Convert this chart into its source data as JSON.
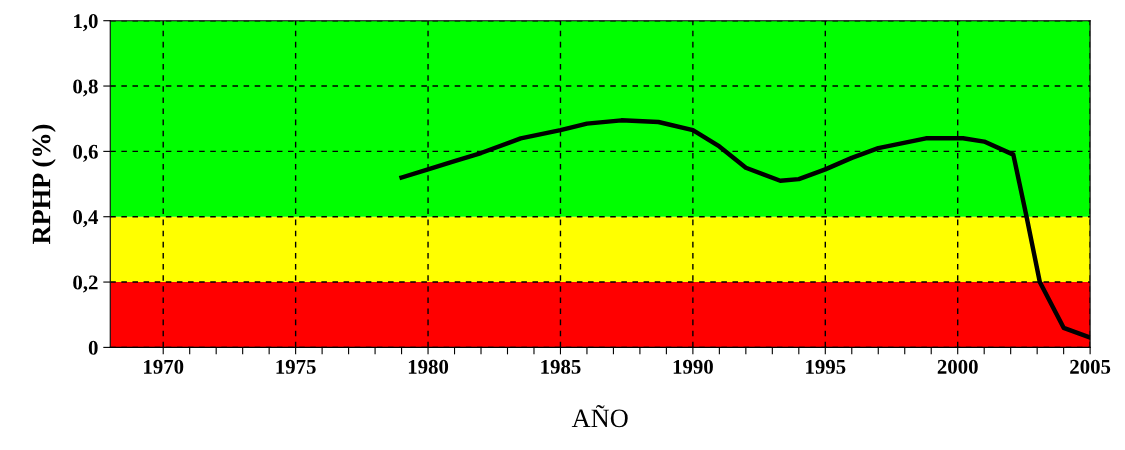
{
  "chart_data": {
    "type": "line",
    "xlabel": "AÑO",
    "ylabel": "RPHP (%)",
    "x": [
      1979,
      1980,
      1981,
      1982,
      1983.5,
      1985,
      1986,
      1987.3,
      1988.7,
      1990,
      1991,
      1992,
      1993.3,
      1994,
      1995,
      1996,
      1997,
      1998.8,
      2000.2,
      2001,
      2002.1,
      2002.6,
      2003.1,
      2004,
      2005
    ],
    "series": [
      {
        "color": "#000000",
        "values": [
          0.52,
          0.545,
          0.57,
          0.595,
          0.64,
          0.665,
          0.685,
          0.695,
          0.69,
          0.665,
          0.615,
          0.55,
          0.51,
          0.515,
          0.545,
          0.58,
          0.61,
          0.64,
          0.64,
          0.63,
          0.59,
          0.4,
          0.2,
          0.06,
          0.03
        ]
      }
    ],
    "xlim": [
      1968,
      2005
    ],
    "ylim": [
      0,
      1.0
    ],
    "xticks": [
      1970,
      {
        "value": 1971,
        "label": null
      },
      {
        "value": 1972,
        "label": null
      },
      {
        "value": 1973,
        "label": null
      },
      {
        "value": 1974,
        "label": null
      },
      1975,
      {
        "value": 1976,
        "label": null
      },
      {
        "value": 1977,
        "label": null
      },
      {
        "value": 1978,
        "label": null
      },
      {
        "value": 1979,
        "label": null
      },
      1980,
      {
        "value": 1981,
        "label": null
      },
      {
        "value": 1982,
        "label": null
      },
      {
        "value": 1983,
        "label": null
      },
      {
        "value": 1984,
        "label": null
      },
      1985,
      {
        "value": 1986,
        "label": null
      },
      {
        "value": 1987,
        "label": null
      },
      {
        "value": 1988,
        "label": null
      },
      {
        "value": 1989,
        "label": null
      },
      1990,
      {
        "value": 1991,
        "label": null
      },
      {
        "value": 1992,
        "label": null
      },
      {
        "value": 1993,
        "label": null
      },
      {
        "value": 1994,
        "label": null
      },
      1995,
      {
        "value": 1996,
        "label": null
      },
      {
        "value": 1997,
        "label": null
      },
      {
        "value": 1998,
        "label": null
      },
      {
        "value": 1999,
        "label": null
      },
      2000,
      {
        "value": 2001,
        "label": null
      },
      {
        "value": 2002,
        "label": null
      },
      {
        "value": 2003,
        "label": null
      },
      {
        "value": 2004,
        "label": null
      },
      2005
    ],
    "yticks": [
      0,
      {
        "value": 0.2,
        "label": "0,2"
      },
      {
        "value": 0.4,
        "label": "0,4"
      },
      {
        "value": 0.6,
        "label": "0,6"
      },
      {
        "value": 0.8,
        "label": "0,8"
      },
      {
        "value": 1.0,
        "label": "1,0"
      }
    ],
    "bands": [
      {
        "axis": "y",
        "from": 0,
        "to": 0.2,
        "color": "#ff0000"
      },
      {
        "axis": "y",
        "from": 0.2,
        "to": 0.4,
        "color": "#ffff00"
      },
      {
        "axis": "y",
        "from": 0.4,
        "to": 1.0,
        "color": "#00ff00"
      }
    ],
    "grid": true,
    "marker": "none",
    "line_style": "solid",
    "legend": false
  }
}
